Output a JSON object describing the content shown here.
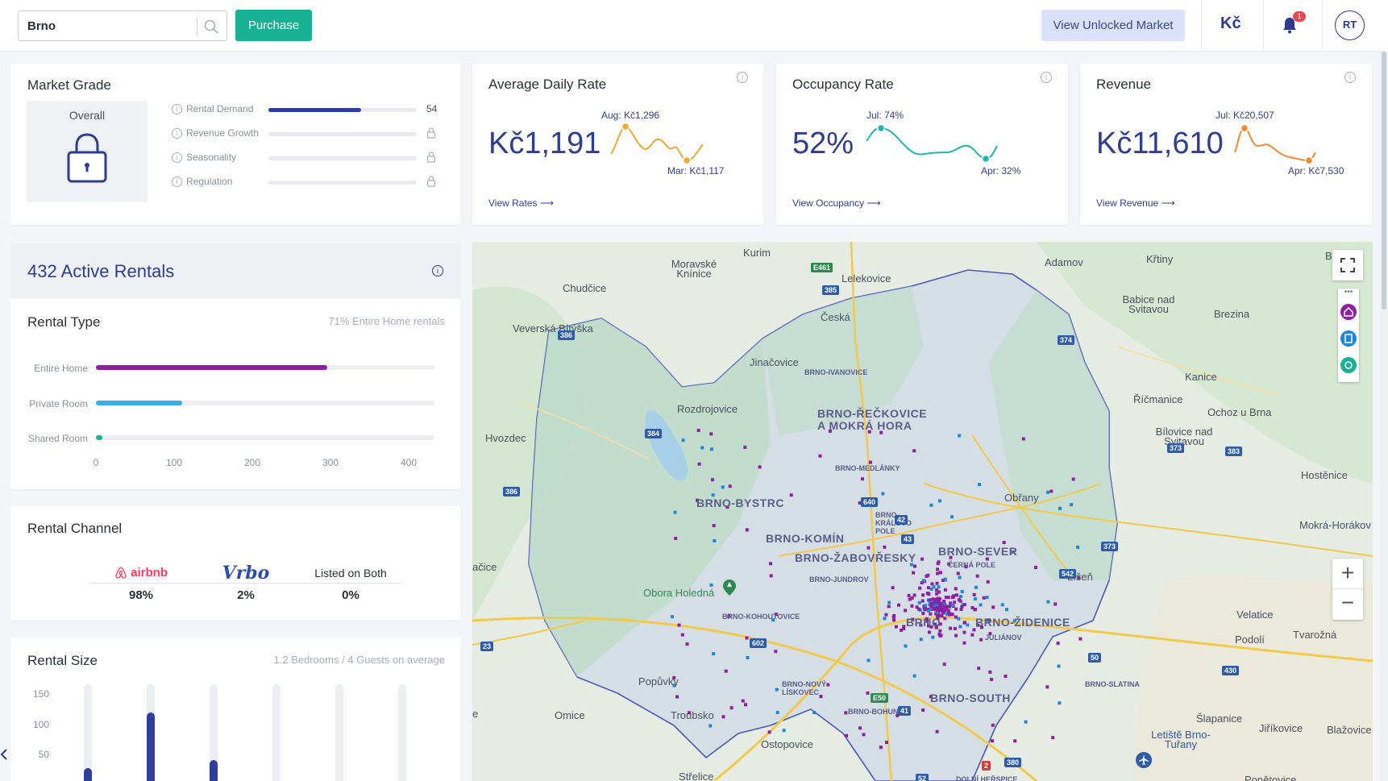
{
  "topbar": {
    "search_value": "Brno",
    "purchase_label": "Purchase",
    "unlocked_label": "View Unlocked Market",
    "currency": "Kč",
    "notifications": "1",
    "avatar": "RT"
  },
  "market_grade": {
    "title": "Market Grade",
    "overall_label": "Overall",
    "rows": [
      {
        "label": "Rental Demand",
        "value": "54",
        "fraction": 0.54,
        "locked": false
      },
      {
        "label": "Revenue Growth",
        "locked": true
      },
      {
        "label": "Seasonality",
        "locked": true
      },
      {
        "label": "Regulation",
        "locked": true
      }
    ]
  },
  "stats": [
    {
      "title": "Average Daily Rate",
      "value": "Kč1,191",
      "link": "View Rates ⟶",
      "high_label": "Aug: Kč1,296",
      "low_label": "Mar: Kč1,117",
      "color": "#f0a830"
    },
    {
      "title": "Occupancy Rate",
      "value": "52%",
      "link": "View Occupancy ⟶",
      "high_label": "Jul: 74%",
      "low_label": "Apr: 32%",
      "color": "#1cb7b0"
    },
    {
      "title": "Revenue",
      "value": "Kč11,610",
      "link": "View Revenue ⟶",
      "high_label": "Jul: Kč20,507",
      "low_label": "Apr: Kč7,530",
      "color": "#f08a30"
    }
  ],
  "rentals": {
    "active_title": "432 Active Rentals",
    "type_title": "Rental Type",
    "type_summary": "71% Entire Home rentals",
    "type_bars": [
      {
        "label": "Entire Home",
        "value": 307,
        "color": "#8e1fa0"
      },
      {
        "label": "Private Room",
        "value": 115,
        "color": "#3aaee8"
      },
      {
        "label": "Shared Room",
        "value": 5,
        "color": "#17b196"
      }
    ],
    "type_axis": [
      "0",
      "100",
      "200",
      "300",
      "400"
    ],
    "channel_title": "Rental Channel",
    "channels": [
      {
        "name": "airbnb",
        "pct": "98%"
      },
      {
        "name": "Vrbo",
        "pct": "2%"
      },
      {
        "name": "Listed on Both",
        "pct": "0%"
      }
    ],
    "size_title": "Rental Size",
    "size_summary": "1.2 Bedrooms / 4 Guests on average",
    "size_yticks": [
      "150",
      "100",
      "50"
    ],
    "size_values": [
      55,
      160,
      70,
      0,
      0,
      0
    ]
  },
  "map": {
    "places": [
      "Kurim",
      "Moravské Knínice",
      "Chudčice",
      "Lelekovice",
      "Česká",
      "Adamov",
      "Křtiny",
      "Bukov",
      "Babice nad Svitavou",
      "Brezina",
      "Veverská Bítýška",
      "Jinačovice",
      "Kanice",
      "Říčmanice",
      "Ochoz u Brna",
      "Rozdrojovice",
      "Hvozdec",
      "Bílovice nad Svitavou",
      "Hostěnice",
      "Mokrá-Horákov",
      "Obřany",
      "ačice",
      "Obora Holedná",
      "Velatice",
      "Tvarožná",
      "Podolí",
      "Popůvky",
      "Troubsko",
      "Omice",
      "Ostopovice",
      "Šlapanice",
      "Jiříkovice",
      "Blažovice",
      "Letiště Brno-Tuřany",
      "Střelice",
      "Ponětovice",
      "e",
      "Líšeň"
    ],
    "districts": [
      "BRNO-ŘEČKOVICE A MOKRÁ HORA",
      "BRNO-BYSTRC",
      "BRNO-KOMÍN",
      "BRNO-ŽABOVŘESKY",
      "BRNO-SEVER",
      "BRNO-ŽIDENICE",
      "BRNO-SOUTH",
      "BRNO"
    ],
    "small_districts": [
      "BRNO-IVANOVICE",
      "BRNO-MEDLÁNKY",
      "BRNO-KRÁLOVO POLE",
      "ČERNÁ POLE",
      "BRNO-JUNDROV",
      "BRNO-KOHOUTOVICE",
      "JULIÁNOV",
      "BRNO-NOVÝ LÍSKOVEC",
      "BRNO-BOHUNICE",
      "BRNO-SLATINA",
      "DOLNÍ HEŘSPICE"
    ],
    "shields": [
      "E461",
      "385",
      "386",
      "384",
      "374",
      "373",
      "383",
      "640",
      "43",
      "42",
      "602",
      "E50",
      "542",
      "50",
      "430",
      "41",
      "380",
      "52",
      "2",
      "23",
      "386",
      "373"
    ]
  }
}
